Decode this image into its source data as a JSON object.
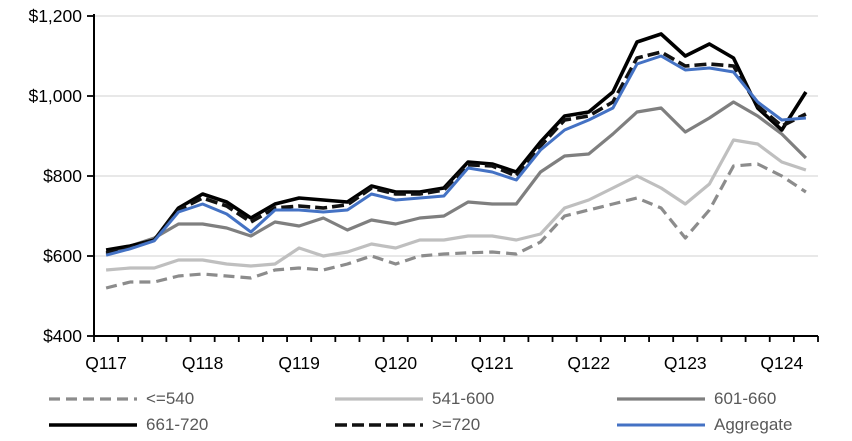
{
  "chart_data": {
    "type": "line",
    "title": "",
    "xlabel": "",
    "ylabel": "",
    "x": [
      "Q117",
      "Q217",
      "Q317",
      "Q417",
      "Q118",
      "Q218",
      "Q318",
      "Q418",
      "Q119",
      "Q219",
      "Q319",
      "Q419",
      "Q120",
      "Q220",
      "Q320",
      "Q420",
      "Q121",
      "Q221",
      "Q321",
      "Q421",
      "Q122",
      "Q222",
      "Q322",
      "Q422",
      "Q123",
      "Q223",
      "Q323",
      "Q423",
      "Q124",
      "Q224"
    ],
    "x_axis_visible_labels": [
      "Q117",
      "Q118",
      "Q119",
      "Q120",
      "Q121",
      "Q122",
      "Q123",
      "Q124"
    ],
    "x_label_every_n": 4,
    "ylim": [
      400,
      1200
    ],
    "y_ticks": [
      {
        "value": 400,
        "label": "$400"
      },
      {
        "value": 600,
        "label": "$600"
      },
      {
        "value": 800,
        "label": "$800"
      },
      {
        "value": 1000,
        "label": "$1,000"
      },
      {
        "value": 1200,
        "label": "$1,200"
      }
    ],
    "grid": "horizontal",
    "gridline_color": "#D9D9D9",
    "axis_color": "#000000",
    "legend_position": "bottom",
    "legend_text_color": "#595959",
    "series": [
      {
        "name": "<=540",
        "color": "#8C8C8C",
        "dash": "11 6",
        "width": 3.2,
        "values": [
          520,
          535,
          535,
          550,
          555,
          550,
          545,
          565,
          570,
          565,
          580,
          600,
          580,
          600,
          605,
          608,
          610,
          605,
          635,
          700,
          715,
          730,
          745,
          720,
          645,
          715,
          825,
          830,
          800,
          760
        ]
      },
      {
        "name": "541-600",
        "color": "#BFBFBF",
        "dash": "",
        "width": 3.2,
        "values": [
          565,
          570,
          570,
          590,
          590,
          580,
          575,
          580,
          620,
          600,
          610,
          630,
          620,
          640,
          640,
          650,
          650,
          640,
          655,
          720,
          740,
          770,
          800,
          770,
          730,
          780,
          890,
          880,
          835,
          815
        ]
      },
      {
        "name": "601-660",
        "color": "#7F7F7F",
        "dash": "",
        "width": 3.2,
        "values": [
          605,
          625,
          645,
          680,
          680,
          670,
          650,
          685,
          675,
          695,
          665,
          690,
          680,
          695,
          700,
          735,
          730,
          730,
          810,
          850,
          855,
          905,
          960,
          970,
          910,
          945,
          985,
          950,
          905,
          845
        ]
      },
      {
        "name": "661-720",
        "color": "#000000",
        "dash": "",
        "width": 3.6,
        "values": [
          615,
          625,
          640,
          720,
          755,
          735,
          695,
          730,
          745,
          740,
          735,
          775,
          760,
          760,
          770,
          835,
          830,
          810,
          885,
          950,
          960,
          1010,
          1135,
          1155,
          1100,
          1130,
          1095,
          970,
          915,
          1010
        ]
      },
      {
        "name": ">=720",
        "color": "#111111",
        "dash": "12 5",
        "width": 3.6,
        "values": [
          608,
          620,
          640,
          715,
          745,
          725,
          685,
          720,
          725,
          720,
          728,
          770,
          755,
          755,
          765,
          828,
          825,
          800,
          875,
          940,
          950,
          985,
          1095,
          1110,
          1075,
          1080,
          1075,
          975,
          925,
          955
        ]
      },
      {
        "name": "Aggregate",
        "color": "#4472C4",
        "dash": "",
        "width": 3.0,
        "values": [
          602,
          618,
          638,
          710,
          730,
          705,
          660,
          715,
          715,
          710,
          715,
          755,
          740,
          745,
          750,
          820,
          810,
          790,
          865,
          915,
          940,
          970,
          1080,
          1100,
          1065,
          1070,
          1060,
          985,
          940,
          945
        ]
      }
    ]
  }
}
